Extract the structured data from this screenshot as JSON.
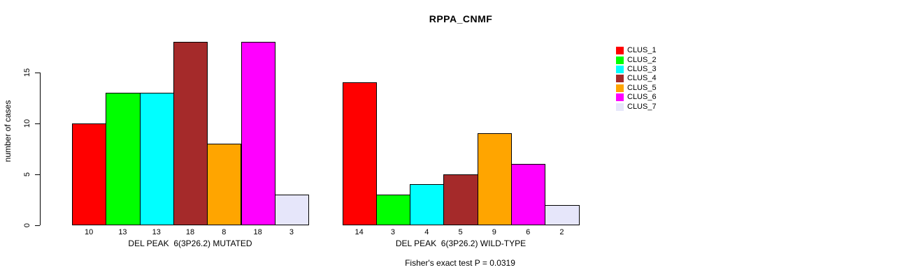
{
  "chart_data": {
    "type": "bar",
    "title": "RPPA_CNMF",
    "ylabel": "number of cases",
    "yticks": [
      0,
      5,
      10,
      15
    ],
    "ylim": [
      0,
      18
    ],
    "grid": false,
    "legend_position": "top-right",
    "annotation": "Fisher's exact test P = 0.0319",
    "clusters": [
      {
        "name": "CLUS_1",
        "color": "#FF0000"
      },
      {
        "name": "CLUS_2",
        "color": "#00FF00"
      },
      {
        "name": "CLUS_3",
        "color": "#00FFFF"
      },
      {
        "name": "CLUS_4",
        "color": "#A52A2A"
      },
      {
        "name": "CLUS_5",
        "color": "#FFA500"
      },
      {
        "name": "CLUS_6",
        "color": "#FF00FF"
      },
      {
        "name": "CLUS_7",
        "color": "#E6E6FA"
      }
    ],
    "groups": [
      {
        "label": "DEL PEAK  6(3P26.2) MUTATED",
        "values": [
          10,
          13,
          13,
          18,
          8,
          18,
          3
        ]
      },
      {
        "label": "DEL PEAK  6(3P26.2) WILD-TYPE",
        "values": [
          14,
          3,
          4,
          5,
          9,
          6,
          2
        ]
      }
    ]
  }
}
